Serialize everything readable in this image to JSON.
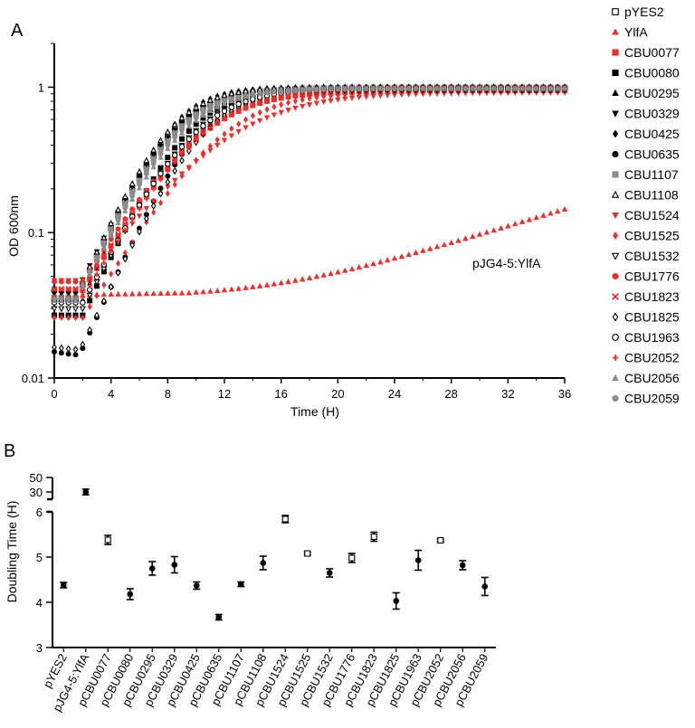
{
  "panels": [
    {
      "letter": "A",
      "chart_data": {
        "type": "scatter",
        "xlabel": "Time (H)",
        "ylabel": "OD 600nm",
        "yscale": "log",
        "xlim": [
          0,
          36
        ],
        "ylim": [
          0.01,
          2
        ],
        "x_ticks": [
          0,
          4,
          8,
          12,
          16,
          20,
          24,
          28,
          32,
          36
        ],
        "x_tick_labels": [
          "0",
          "4",
          "8",
          "12",
          "16",
          "20",
          "24",
          "28",
          "32",
          "36"
        ],
        "y_ticks": [
          0.01,
          0.1,
          1
        ],
        "y_tick_labels": [
          "0.01",
          "0.1",
          "1"
        ],
        "annotation": "pJG4-5:YlfA",
        "sample_interval_h": 0.5,
        "legend_position": "right",
        "series": [
          {
            "name": "pYES2",
            "marker": "square-open",
            "color": "#000000",
            "y0": 0.035,
            "K": 0.98,
            "r": 0.48,
            "lag": 1.5,
            "lagdip": 0
          },
          {
            "name": "YlfA",
            "marker": "triangle",
            "color": "#e8302e",
            "y0": 0.037,
            "K": 0.2,
            "r": 0.052,
            "lag": 12,
            "lagdip": 0
          },
          {
            "name": "CBU0077",
            "marker": "square",
            "color": "#e8302e",
            "y0": 0.04,
            "K": 0.95,
            "r": 0.37,
            "lag": 2,
            "lagdip": 0
          },
          {
            "name": "CBU0080",
            "marker": "square",
            "color": "#000000",
            "y0": 0.027,
            "K": 0.98,
            "r": 0.48,
            "lag": 2,
            "lagdip": 0
          },
          {
            "name": "CBU0295",
            "marker": "triangle",
            "color": "#000000",
            "y0": 0.036,
            "K": 0.99,
            "r": 0.46,
            "lag": 1.5,
            "lagdip": 0
          },
          {
            "name": "CBU0329",
            "marker": "triangle-down",
            "color": "#000000",
            "y0": 0.038,
            "K": 0.98,
            "r": 0.47,
            "lag": 1.5,
            "lagdip": 0
          },
          {
            "name": "CBU0425",
            "marker": "diamond",
            "color": "#000000",
            "y0": 0.034,
            "K": 1.0,
            "r": 0.55,
            "lag": 2,
            "lagdip": 0
          },
          {
            "name": "CBU0635",
            "marker": "circle",
            "color": "#000000",
            "y0": 0.016,
            "K": 0.97,
            "r": 0.5,
            "lag": 2,
            "lagdip": 0.1
          },
          {
            "name": "CBU1107",
            "marker": "square",
            "color": "#8c8c8c",
            "y0": 0.036,
            "K": 1.0,
            "r": 0.46,
            "lag": 1.5,
            "lagdip": 0
          },
          {
            "name": "CBU1108",
            "marker": "triangle-open",
            "color": "#000000",
            "y0": 0.036,
            "K": 1.0,
            "r": 0.5,
            "lag": 1.5,
            "lagdip": 0
          },
          {
            "name": "CBU1524",
            "marker": "triangle-down",
            "color": "#e8302e",
            "y0": 0.047,
            "K": 0.92,
            "r": 0.28,
            "lag": 2,
            "lagdip": 0
          },
          {
            "name": "CBU1525",
            "marker": "diamond",
            "color": "#e8302e",
            "y0": 0.026,
            "K": 0.93,
            "r": 0.36,
            "lag": 2,
            "lagdip": 0
          },
          {
            "name": "CBU1532",
            "marker": "triangle-down-open",
            "color": "#000000",
            "y0": 0.03,
            "K": 0.97,
            "r": 0.44,
            "lag": 2,
            "lagdip": 0
          },
          {
            "name": "CBU1776",
            "marker": "circle",
            "color": "#e8302e",
            "y0": 0.046,
            "K": 0.97,
            "r": 0.36,
            "lag": 2,
            "lagdip": 0
          },
          {
            "name": "CBU1823",
            "marker": "x",
            "color": "#e8302e",
            "y0": 0.041,
            "K": 0.99,
            "r": 0.37,
            "lag": 2,
            "lagdip": 0
          },
          {
            "name": "CBU1825",
            "marker": "diamond-open",
            "color": "#000000",
            "y0": 0.017,
            "K": 0.96,
            "r": 0.47,
            "lag": 2,
            "lagdip": 0.08
          },
          {
            "name": "CBU1963",
            "marker": "circle-open",
            "color": "#000000",
            "y0": 0.033,
            "K": 0.98,
            "r": 0.42,
            "lag": 2,
            "lagdip": 0
          },
          {
            "name": "CBU2052",
            "marker": "plus",
            "color": "#e8302e",
            "y0": 0.036,
            "K": 0.98,
            "r": 0.38,
            "lag": 2,
            "lagdip": 0
          },
          {
            "name": "CBU2056",
            "marker": "triangle",
            "color": "#8c8c8c",
            "y0": 0.034,
            "K": 0.98,
            "r": 0.44,
            "lag": 1.5,
            "lagdip": 0
          },
          {
            "name": "CBU2059",
            "marker": "circle",
            "color": "#8c8c8c",
            "y0": 0.035,
            "K": 0.98,
            "r": 0.45,
            "lag": 1.5,
            "lagdip": 0
          }
        ]
      }
    },
    {
      "letter": "B",
      "chart_data": {
        "type": "scatter-errorbar",
        "ylabel": "Doubling Time (H)",
        "y_break": {
          "lower_range": [
            3,
            6
          ],
          "upper_range": [
            20,
            50
          ]
        },
        "y_ticks_lower": [
          3,
          4,
          5,
          6
        ],
        "y_ticks_upper": [
          30,
          50
        ],
        "categories": [
          "pYES2",
          "pJG4-5:YlfA",
          "pCBU0077",
          "pCBU0080",
          "pCBU0295",
          "pCBU0329",
          "pCBU0425",
          "pCBU0635",
          "pCBU1107",
          "pCBU1108",
          "pCBU1524",
          "pCBU1525",
          "pCBU1532",
          "pCBU1776",
          "pCBU1823",
          "pCBU1825",
          "pCBU1963",
          "pCBU2052",
          "pCBU2056",
          "pCBU2059"
        ],
        "values": [
          4.38,
          30,
          5.38,
          4.18,
          4.75,
          4.83,
          4.37,
          3.67,
          4.4,
          4.87,
          5.84,
          5.08,
          4.65,
          4.98,
          5.45,
          4.03,
          4.93,
          5.37,
          4.82,
          4.35
        ],
        "errors": [
          0.06,
          4,
          0.1,
          0.12,
          0.15,
          0.18,
          0.08,
          0.06,
          0.05,
          0.15,
          0.08,
          0.03,
          0.09,
          0.1,
          0.1,
          0.18,
          0.22,
          0.03,
          0.1,
          0.2
        ],
        "markers": [
          "circle",
          "circle",
          "square-open",
          "circle",
          "circle",
          "circle",
          "circle",
          "circle",
          "circle",
          "circle",
          "square-open",
          "square-open",
          "circle",
          "square-open",
          "square-open",
          "circle",
          "circle",
          "square-open",
          "circle",
          "circle"
        ]
      }
    }
  ]
}
